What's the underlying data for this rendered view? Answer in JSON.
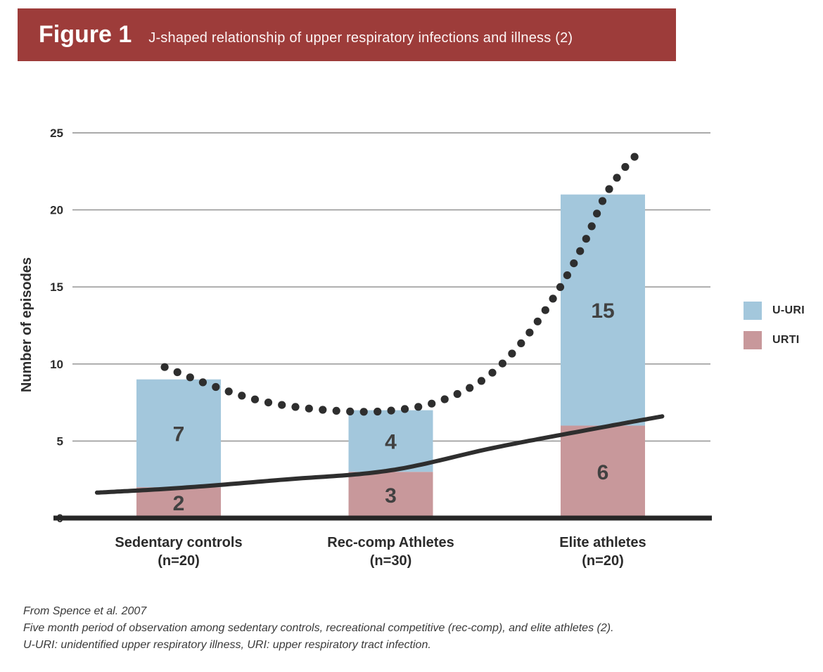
{
  "header": {
    "figure_label": "Figure 1",
    "title": "J-shaped relationship of upper respiratory infections and illness (2)",
    "bg_color": "#9d3c3a"
  },
  "chart_data": {
    "type": "bar",
    "subtype": "stacked bars with overlaid dotted J-curve and solid trend line",
    "ylabel": "Number of episodes",
    "ylim": [
      0,
      25
    ],
    "yticks": [
      0,
      5,
      10,
      15,
      20,
      25
    ],
    "grid": true,
    "legend_position": "right",
    "categories": [
      {
        "label": "Sedentary controls",
        "sub": "(n=20)"
      },
      {
        "label": "Rec-comp Athletes",
        "sub": "(n=30)"
      },
      {
        "label": "Elite athletes",
        "sub": "(n=20)"
      }
    ],
    "series": [
      {
        "name": "URTI",
        "color": "#c8989b",
        "stack": "bottom",
        "values": [
          2,
          3,
          6
        ]
      },
      {
        "name": "U-URI",
        "color": "#a3c7dc",
        "stack": "top",
        "values": [
          7,
          4,
          15
        ]
      }
    ],
    "dotted_curve": {
      "name": "j-shaped-curve",
      "style": "dotted",
      "color": "#2e2e2e",
      "points_u_v": [
        [
          -0.066,
          9.8
        ],
        [
          0.156,
          8.6
        ],
        [
          0.389,
          7.6
        ],
        [
          0.621,
          7.1
        ],
        [
          0.854,
          6.9
        ],
        [
          1.02,
          7.0
        ],
        [
          1.186,
          7.4
        ],
        [
          1.352,
          8.3
        ],
        [
          1.485,
          9.5
        ],
        [
          1.618,
          11.4
        ],
        [
          1.734,
          13.6
        ],
        [
          1.834,
          15.8
        ],
        [
          1.924,
          18.2
        ],
        [
          2.003,
          20.7
        ],
        [
          2.083,
          22.4
        ],
        [
          2.153,
          23.5
        ]
      ]
    },
    "trend_line": {
      "name": "solid-trend-line",
      "style": "solid",
      "color": "#2e2e2e",
      "points_u_v": [
        [
          -0.385,
          1.65
        ],
        [
          0,
          1.95
        ],
        [
          0.5,
          2.5
        ],
        [
          1,
          3.1
        ],
        [
          1.5,
          4.6
        ],
        [
          2,
          5.9
        ],
        [
          2.28,
          6.6
        ]
      ]
    }
  },
  "legend": {
    "items": [
      {
        "label": "U-URI",
        "color": "#a3c7dc"
      },
      {
        "label": "URTI",
        "color": "#c8989b"
      }
    ]
  },
  "footer": {
    "lines": [
      "From Spence et al. 2007",
      "Five month period of observation among sedentary controls, recreational competitive (rec-comp), and elite athletes (2).",
      "U-URI: unidentified upper respiratory illness, URI: upper respiratory tract infection."
    ]
  }
}
